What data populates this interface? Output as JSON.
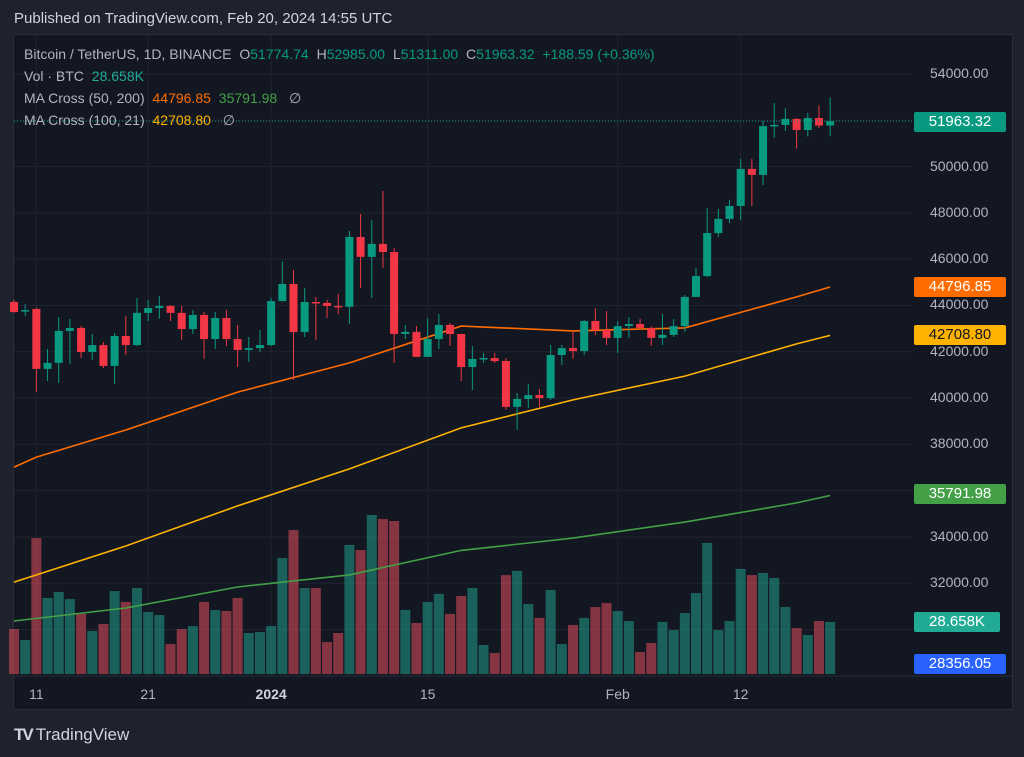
{
  "published": "Published on TradingView.com, Feb 20, 2024 14:55 UTC",
  "legend": {
    "symbol": "Bitcoin / TetherUS, 1D, BINANCE",
    "o_label": "O",
    "o": "51774.74",
    "h_label": "H",
    "h": "52985.00",
    "l_label": "L",
    "l": "51311.00",
    "c_label": "C",
    "c": "51963.32",
    "change": "+188.59 (+0.36%)",
    "vol_label": "Vol · BTC",
    "vol": "28.658K",
    "ma1_label": "MA Cross (50, 200)",
    "ma1_a": "44796.85",
    "ma1_b": "35791.98",
    "ma2_label": "MA Cross (100, 21)",
    "ma2_a": "42708.80",
    "hidden_icon": "∅"
  },
  "price_axis": [
    "54000.00",
    "50000.00",
    "48000.00",
    "46000.00",
    "44000.00",
    "42000.00",
    "40000.00",
    "38000.00",
    "34000.00",
    "32000.00"
  ],
  "tags": {
    "last": "51963.32",
    "ma_orange": "44796.85",
    "ma_yellow": "42708.80",
    "ma_green": "35791.98",
    "volume": "28.658K",
    "blue": "28356.05"
  },
  "time_axis": [
    {
      "label": "11",
      "index": 2,
      "bold": false
    },
    {
      "label": "21",
      "index": 12,
      "bold": false
    },
    {
      "label": "2024",
      "index": 23,
      "bold": true
    },
    {
      "label": "15",
      "index": 37,
      "bold": false
    },
    {
      "label": "Feb",
      "index": 54,
      "bold": false
    },
    {
      "label": "12",
      "index": 65,
      "bold": false
    }
  ],
  "brand": "TradingView",
  "colors": {
    "up": "#089981",
    "down": "#f23645",
    "vol_up": "#22ab94",
    "vol_down": "#f7525f",
    "ma50": "#ff6d00",
    "ma100": "#ffb300",
    "ma200": "#43a047",
    "blue": "#2962ff"
  },
  "chart_data": {
    "type": "candlestick",
    "title": "Bitcoin / TetherUS, 1D, BINANCE",
    "x_start": "2023-12-09",
    "x_end": "2024-02-20",
    "ylim": [
      30000,
      55000
    ],
    "ohlcv_fields": [
      "open",
      "high",
      "low",
      "close",
      "volume"
    ],
    "candles": [
      [
        44150,
        44240,
        43680,
        43720,
        24800
      ],
      [
        43760,
        44060,
        43550,
        43800,
        18700
      ],
      [
        43850,
        43900,
        40260,
        41260,
        74900
      ],
      [
        41260,
        42120,
        40740,
        41520,
        41900
      ],
      [
        41520,
        43500,
        40650,
        42900,
        45200
      ],
      [
        42900,
        43420,
        41470,
        43030,
        41300
      ],
      [
        43030,
        43110,
        41730,
        41990,
        33100
      ],
      [
        41990,
        42770,
        41650,
        42290,
        23700
      ],
      [
        42290,
        42420,
        41300,
        41390,
        27600
      ],
      [
        41390,
        42810,
        40610,
        42680,
        45700
      ],
      [
        42680,
        43550,
        41860,
        42290,
        39700
      ],
      [
        42290,
        44320,
        42250,
        43680,
        47400
      ],
      [
        43680,
        44240,
        43330,
        43890,
        34200
      ],
      [
        43890,
        44410,
        43420,
        43980,
        32500
      ],
      [
        43980,
        44020,
        43330,
        43680,
        16500
      ],
      [
        43680,
        43980,
        42510,
        42980,
        24800
      ],
      [
        42980,
        43800,
        42770,
        43590,
        26400
      ],
      [
        43590,
        43720,
        41690,
        42550,
        39700
      ],
      [
        42550,
        43720,
        42120,
        43460,
        35300
      ],
      [
        43460,
        43800,
        42250,
        42550,
        34700
      ],
      [
        42550,
        43160,
        41340,
        42080,
        41900
      ],
      [
        42080,
        42640,
        41560,
        42160,
        22600
      ],
      [
        42160,
        42940,
        41990,
        42290,
        23100
      ],
      [
        42290,
        44320,
        42250,
        44190,
        26400
      ],
      [
        44190,
        45920,
        44190,
        44930,
        63900
      ],
      [
        44930,
        45530,
        40780,
        42850,
        79300
      ],
      [
        42850,
        44760,
        42640,
        44150,
        47400
      ],
      [
        44150,
        44370,
        42510,
        44110,
        47400
      ],
      [
        44110,
        44240,
        43460,
        43980,
        17600
      ],
      [
        43980,
        44500,
        43630,
        43940,
        22600
      ],
      [
        43940,
        47220,
        43200,
        46960,
        71100
      ],
      [
        46960,
        47950,
        44760,
        46100,
        68300
      ],
      [
        46100,
        47690,
        44320,
        46660,
        87600
      ],
      [
        46660,
        48950,
        45620,
        46310,
        85400
      ],
      [
        46310,
        46480,
        41520,
        42770,
        84300
      ],
      [
        42770,
        43160,
        42550,
        42860,
        35300
      ],
      [
        42860,
        43110,
        41780,
        41780,
        28100
      ],
      [
        41780,
        43460,
        41780,
        42550,
        39700
      ],
      [
        42550,
        43630,
        42120,
        43160,
        44100
      ],
      [
        43160,
        43250,
        42250,
        42770,
        33100
      ],
      [
        42770,
        42770,
        40740,
        41340,
        43000
      ],
      [
        41340,
        42250,
        40350,
        41690,
        47400
      ],
      [
        41690,
        41950,
        41520,
        41730,
        16000
      ],
      [
        41730,
        41950,
        41520,
        41600,
        11600
      ],
      [
        41600,
        41730,
        39490,
        39620,
        54500
      ],
      [
        39620,
        40220,
        38620,
        39960,
        56800
      ],
      [
        39960,
        40610,
        39570,
        40130,
        38600
      ],
      [
        40130,
        40390,
        39620,
        40000,
        30900
      ],
      [
        40000,
        42290,
        39920,
        41860,
        46300
      ],
      [
        41860,
        42290,
        41430,
        42160,
        16500
      ],
      [
        42160,
        42860,
        41690,
        42030,
        27000
      ],
      [
        42030,
        43370,
        41860,
        43330,
        30900
      ],
      [
        43330,
        43890,
        42730,
        42940,
        36900
      ],
      [
        42940,
        43760,
        42290,
        42600,
        39100
      ],
      [
        42600,
        43330,
        41950,
        43110,
        34700
      ],
      [
        43110,
        43500,
        42600,
        43200,
        29200
      ],
      [
        43200,
        43420,
        42940,
        43030,
        12100
      ],
      [
        43030,
        43110,
        42250,
        42600,
        17100
      ],
      [
        42600,
        43630,
        42290,
        42730,
        28700
      ],
      [
        42730,
        43420,
        42640,
        43110,
        24200
      ],
      [
        43110,
        44450,
        42860,
        44370,
        33600
      ],
      [
        44370,
        45620,
        44370,
        45270,
        44600
      ],
      [
        45270,
        48210,
        45230,
        47130,
        72200
      ],
      [
        47130,
        48170,
        46960,
        47740,
        24200
      ],
      [
        47740,
        48560,
        47560,
        48300,
        29200
      ],
      [
        48300,
        50330,
        47690,
        49900,
        57900
      ],
      [
        49900,
        50330,
        48300,
        49640,
        54500
      ],
      [
        49640,
        51970,
        49200,
        51750,
        55700
      ],
      [
        51750,
        52750,
        51240,
        51800,
        52900
      ],
      [
        51800,
        52520,
        51540,
        52060,
        36900
      ],
      [
        52060,
        52100,
        50780,
        51580,
        25300
      ],
      [
        51580,
        52320,
        51300,
        52100,
        21500
      ],
      [
        52100,
        52640,
        51670,
        51775,
        29200
      ],
      [
        51774.74,
        52985,
        51311,
        51963.32,
        28658
      ]
    ],
    "moving_averages": [
      {
        "name": "MA 50",
        "color": "#ff6d00",
        "index": [
          0,
          2,
          10,
          20,
          30,
          40,
          50,
          60,
          70,
          73
        ],
        "values": [
          37020,
          37450,
          38620,
          40260,
          41520,
          43110,
          42900,
          43030,
          44370,
          44796.85
        ]
      },
      {
        "name": "MA 100",
        "color": "#ffb300",
        "index": [
          0,
          10,
          20,
          30,
          40,
          50,
          60,
          70,
          73
        ],
        "values": [
          32050,
          33610,
          35340,
          36940,
          38710,
          39920,
          40950,
          42340,
          42708.8
        ]
      },
      {
        "name": "MA 200",
        "color": "#43a047",
        "index": [
          0,
          10,
          20,
          30,
          40,
          50,
          60,
          70,
          73
        ],
        "values": [
          30370,
          30930,
          31840,
          32360,
          33420,
          33950,
          34640,
          35470,
          35791.98
        ]
      }
    ]
  }
}
